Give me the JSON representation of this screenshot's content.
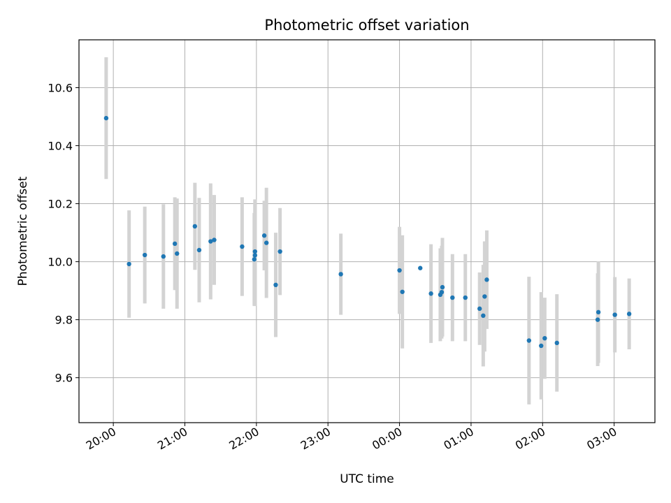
{
  "chart_data": {
    "type": "scatter",
    "title": "Photometric offset variation",
    "xlabel": "UTC time",
    "ylabel": "Photometric offset",
    "x_unit": "hours since 19:00 UTC (x tick labels show clock time)",
    "xlim": [
      0.52,
      8.57
    ],
    "ylim": [
      9.445,
      10.765
    ],
    "x_ticks": [
      {
        "value": 1,
        "label": "20:00"
      },
      {
        "value": 2,
        "label": "21:00"
      },
      {
        "value": 3,
        "label": "22:00"
      },
      {
        "value": 4,
        "label": "23:00"
      },
      {
        "value": 5,
        "label": "00:00"
      },
      {
        "value": 6,
        "label": "01:00"
      },
      {
        "value": 7,
        "label": "02:00"
      },
      {
        "value": 8,
        "label": "03:00"
      }
    ],
    "y_ticks": [
      {
        "value": 9.6,
        "label": "9.6"
      },
      {
        "value": 9.8,
        "label": "9.8"
      },
      {
        "value": 10.0,
        "label": "10.0"
      },
      {
        "value": 10.2,
        "label": "10.2"
      },
      {
        "value": 10.4,
        "label": "10.4"
      },
      {
        "value": 10.6,
        "label": "10.6"
      }
    ],
    "grid": true,
    "marker_color": "#1f77b4",
    "errorbar_color": "#d3d3d3",
    "points": [
      {
        "x": 0.9,
        "y": 10.495,
        "err": 0.21
      },
      {
        "x": 1.22,
        "y": 9.992,
        "err": 0.185
      },
      {
        "x": 1.44,
        "y": 10.023,
        "err": 0.167
      },
      {
        "x": 1.7,
        "y": 10.018,
        "err": 0.18
      },
      {
        "x": 1.86,
        "y": 10.062,
        "err": 0.16
      },
      {
        "x": 1.89,
        "y": 10.028,
        "err": 0.19
      },
      {
        "x": 2.14,
        "y": 10.122,
        "err": 0.15
      },
      {
        "x": 2.2,
        "y": 10.04,
        "err": 0.18
      },
      {
        "x": 2.36,
        "y": 10.07,
        "err": 0.2
      },
      {
        "x": 2.41,
        "y": 10.075,
        "err": 0.155
      },
      {
        "x": 2.8,
        "y": 10.052,
        "err": 0.17
      },
      {
        "x": 2.97,
        "y": 10.008,
        "err": 0.16
      },
      {
        "x": 2.98,
        "y": 10.022,
        "err": 0.175
      },
      {
        "x": 2.98,
        "y": 10.035,
        "err": 0.18
      },
      {
        "x": 3.11,
        "y": 10.09,
        "err": 0.12
      },
      {
        "x": 3.14,
        "y": 10.065,
        "err": 0.19
      },
      {
        "x": 3.27,
        "y": 9.92,
        "err": 0.18
      },
      {
        "x": 3.33,
        "y": 10.035,
        "err": 0.15
      },
      {
        "x": 4.18,
        "y": 9.957,
        "err": 0.14
      },
      {
        "x": 5.0,
        "y": 9.97,
        "err": 0.15
      },
      {
        "x": 5.04,
        "y": 9.896,
        "err": 0.195
      },
      {
        "x": 5.29,
        "y": 9.978,
        "err": 0.0
      },
      {
        "x": 5.44,
        "y": 9.89,
        "err": 0.17
      },
      {
        "x": 5.57,
        "y": 9.886,
        "err": 0.16
      },
      {
        "x": 5.59,
        "y": 9.895,
        "err": 0.16
      },
      {
        "x": 5.6,
        "y": 9.912,
        "err": 0.17
      },
      {
        "x": 5.74,
        "y": 9.876,
        "err": 0.15
      },
      {
        "x": 5.92,
        "y": 9.876,
        "err": 0.15
      },
      {
        "x": 6.12,
        "y": 9.838,
        "err": 0.125
      },
      {
        "x": 6.17,
        "y": 9.814,
        "err": 0.175
      },
      {
        "x": 6.19,
        "y": 9.88,
        "err": 0.19
      },
      {
        "x": 6.22,
        "y": 9.938,
        "err": 0.17
      },
      {
        "x": 6.81,
        "y": 9.728,
        "err": 0.22
      },
      {
        "x": 6.98,
        "y": 9.71,
        "err": 0.185
      },
      {
        "x": 7.03,
        "y": 9.736,
        "err": 0.14
      },
      {
        "x": 7.2,
        "y": 9.72,
        "err": 0.168
      },
      {
        "x": 7.77,
        "y": 9.8,
        "err": 0.16
      },
      {
        "x": 7.78,
        "y": 9.826,
        "err": 0.175
      },
      {
        "x": 8.01,
        "y": 9.817,
        "err": 0.13
      },
      {
        "x": 8.21,
        "y": 9.82,
        "err": 0.122
      }
    ]
  }
}
